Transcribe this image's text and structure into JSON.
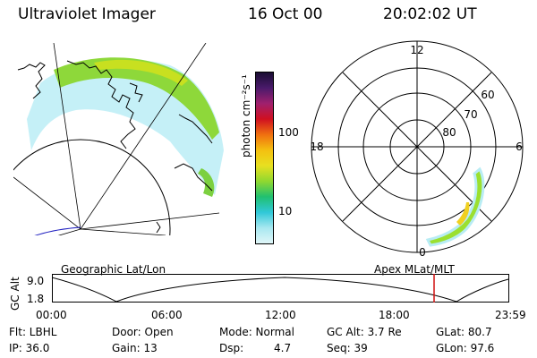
{
  "header": {
    "instrument": "Ultraviolet Imager",
    "date": "16 Oct 00",
    "time": "20:02:02 UT"
  },
  "colorbar": {
    "unit_label": "photon cm⁻²s⁻¹",
    "ticks": [
      "100",
      "10"
    ],
    "colors": [
      "#1a0d33",
      "#4a1a6b",
      "#a0206e",
      "#d01020",
      "#f07010",
      "#f4c010",
      "#e8e020",
      "#90d830",
      "#20c070",
      "#30c8d8",
      "#a8e8f0",
      "#e0f6f8"
    ]
  },
  "polar_plot": {
    "hour_labels": [
      "12",
      "18",
      "6",
      "0"
    ],
    "lat_labels": [
      "60",
      "70",
      "80"
    ]
  },
  "timeline": {
    "left_label": "Geographic Lat/Lon",
    "right_label": "Apex MLat/MLT",
    "axis_label": "GC Alt",
    "y_ticks": [
      "9.0",
      "1.8"
    ],
    "x_ticks": [
      "00:00",
      "06:00",
      "12:00",
      "18:00",
      "23:59"
    ],
    "marker_color": "#d01010"
  },
  "status": {
    "flt": "Flt: LBHL",
    "ip": "IP: 36.0",
    "door": "Door: Open",
    "gain": "Gain: 13",
    "mode": "Mode: Normal",
    "dsp_label": "Dsp:",
    "dsp_value": "4.7",
    "gc_alt": "GC Alt: 3.7 Re",
    "seq": "Seq: 39",
    "glat": "GLat:  80.7",
    "glon": "GLon:  97.6"
  }
}
